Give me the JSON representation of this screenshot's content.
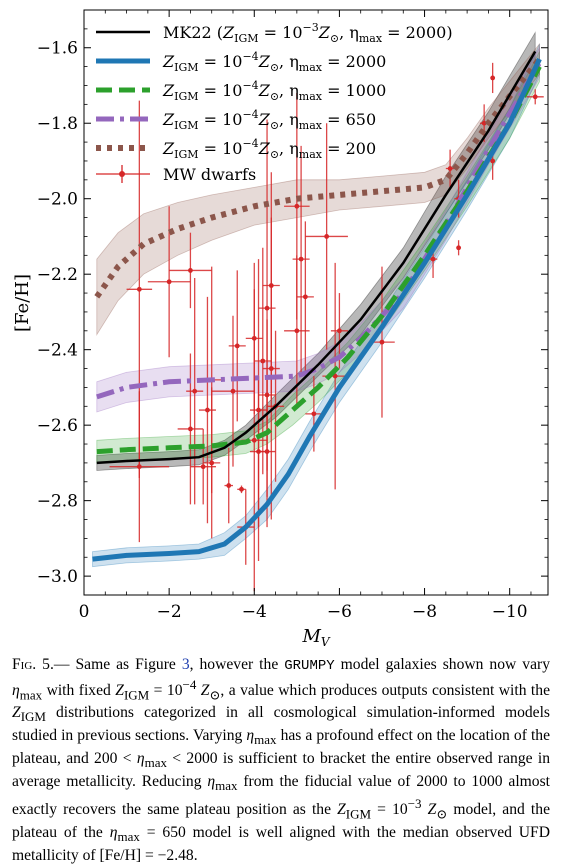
{
  "chart_data": {
    "type": "line",
    "xlabel": "M_V",
    "ylabel": "[Fe/H]",
    "xlim": [
      0,
      -10.9
    ],
    "ylim": [
      -3.05,
      -1.5
    ],
    "x_ticks": [
      0,
      -2,
      -4,
      -6,
      -8,
      -10
    ],
    "x_tick_labels": [
      "0",
      "−2",
      "−4",
      "−6",
      "−8",
      "−10"
    ],
    "y_ticks": [
      -3.0,
      -2.8,
      -2.6,
      -2.4,
      -2.2,
      -2.0,
      -1.8,
      -1.6
    ],
    "y_tick_labels": [
      "−3.0",
      "−2.8",
      "−2.6",
      "−2.4",
      "−2.2",
      "−2.0",
      "−1.8",
      "−1.6"
    ],
    "legend_position": "top-left",
    "series": [
      {
        "name": "MK22 (Z_IGM = 10^−3 Z_⊙, η_max = 2000)",
        "legend_prefix": "MK22 (",
        "legend_z": "Z",
        "legend_sub": "IGM",
        "legend_eq": " = 10",
        "legend_exp": "−3",
        "legend_sun": "Z",
        "legend_sun_sub": "⊙",
        "legend_eta": ", η",
        "legend_eta_sub": "max",
        "legend_value": " = 2000)",
        "color": "#000000",
        "style": "solid",
        "x": [
          -0.3,
          -1,
          -2,
          -2.7,
          -3.3,
          -3.8,
          -4.5,
          -5.5,
          -6.5,
          -7.5,
          -8.5,
          -9.5,
          -10.6
        ],
        "y": [
          -2.7,
          -2.695,
          -2.69,
          -2.685,
          -2.66,
          -2.62,
          -2.55,
          -2.44,
          -2.32,
          -2.17,
          -1.99,
          -1.82,
          -1.61
        ],
        "band": [
          0.02,
          0.02,
          0.02,
          0.02,
          0.02,
          0.02,
          0.03,
          0.03,
          0.04,
          0.04,
          0.05,
          0.05,
          0.05
        ]
      },
      {
        "name": "Z_IGM = 10^−4 Z_⊙, η_max = 2000",
        "legend_z": "Z",
        "legend_sub": "IGM",
        "legend_eq": " = 10",
        "legend_exp": "−4",
        "legend_sun": "Z",
        "legend_sun_sub": "⊙",
        "legend_eta": ", η",
        "legend_eta_sub": "max",
        "legend_value": " = 2000",
        "color": "#1f77b4",
        "style": "solid",
        "x": [
          -0.2,
          -1,
          -2,
          -2.7,
          -3.3,
          -3.8,
          -4.3,
          -4.8,
          -5.3,
          -6,
          -7,
          -8,
          -9,
          -10,
          -10.7
        ],
        "y": [
          -2.955,
          -2.945,
          -2.94,
          -2.935,
          -2.915,
          -2.87,
          -2.81,
          -2.73,
          -2.63,
          -2.5,
          -2.34,
          -2.17,
          -1.99,
          -1.8,
          -1.63
        ],
        "band": [
          0.02,
          0.02,
          0.02,
          0.02,
          0.03,
          0.03,
          0.04,
          0.04,
          0.04,
          0.04,
          0.04,
          0.04,
          0.04,
          0.04,
          0.04
        ]
      },
      {
        "name": "Z_IGM = 10^−4 Z_⊙, η_max = 1000",
        "legend_z": "Z",
        "legend_sub": "IGM",
        "legend_eq": " = 10",
        "legend_exp": "−4",
        "legend_sun": "Z",
        "legend_sun_sub": "⊙",
        "legend_eta": ", η",
        "legend_eta_sub": "max",
        "legend_value": " = 1000",
        "color": "#2ca02c",
        "style": "dashed",
        "x": [
          -0.3,
          -1,
          -2,
          -3,
          -3.8,
          -4.3,
          -4.9,
          -5.5,
          -6.2,
          -7,
          -8,
          -9,
          -10,
          -10.7
        ],
        "y": [
          -2.67,
          -2.665,
          -2.66,
          -2.655,
          -2.645,
          -2.62,
          -2.56,
          -2.5,
          -2.42,
          -2.31,
          -2.15,
          -1.98,
          -1.8,
          -1.65
        ],
        "band": [
          0.03,
          0.03,
          0.03,
          0.03,
          0.03,
          0.03,
          0.04,
          0.04,
          0.04,
          0.04,
          0.04,
          0.04,
          0.04,
          0.04
        ]
      },
      {
        "name": "Z_IGM = 10^−4 Z_⊙, η_max = 650",
        "legend_z": "Z",
        "legend_sub": "IGM",
        "legend_eq": " = 10",
        "legend_exp": "−4",
        "legend_sun": "Z",
        "legend_sun_sub": "⊙",
        "legend_eta": ", η",
        "legend_eta_sub": "max",
        "legend_value": " = 650",
        "color": "#9467bd",
        "style": "dashdot",
        "x": [
          -0.3,
          -1,
          -2,
          -3,
          -4,
          -5,
          -5.5,
          -6,
          -6.5,
          -7.5,
          -8.5,
          -9.5,
          -10.7
        ],
        "y": [
          -2.525,
          -2.5,
          -2.485,
          -2.48,
          -2.475,
          -2.47,
          -2.45,
          -2.42,
          -2.37,
          -2.25,
          -2.07,
          -1.87,
          -1.64
        ],
        "band": [
          0.04,
          0.04,
          0.04,
          0.04,
          0.04,
          0.04,
          0.04,
          0.04,
          0.04,
          0.04,
          0.04,
          0.04,
          0.04
        ]
      },
      {
        "name": "Z_IGM = 10^−4 Z_⊙, η_max = 200",
        "legend_z": "Z",
        "legend_sub": "IGM",
        "legend_eq": " = 10",
        "legend_exp": "−4",
        "legend_sun": "Z",
        "legend_sun_sub": "⊙",
        "legend_eta": ", η",
        "legend_eta_sub": "max",
        "legend_value": " = 200",
        "color": "#8c564b",
        "style": "dotted",
        "x": [
          -0.3,
          -0.8,
          -1.4,
          -2.2,
          -3,
          -4,
          -5,
          -6,
          -7,
          -8,
          -8.5,
          -9,
          -9.5,
          -10.2,
          -10.7
        ],
        "y": [
          -2.26,
          -2.18,
          -2.12,
          -2.08,
          -2.05,
          -2.02,
          -2.0,
          -1.99,
          -1.98,
          -1.97,
          -1.95,
          -1.88,
          -1.8,
          -1.7,
          -1.63
        ],
        "band": [
          0.1,
          0.09,
          0.08,
          0.07,
          0.06,
          0.05,
          0.05,
          0.04,
          0.04,
          0.04,
          0.04,
          0.04,
          0.04,
          0.04,
          0.04
        ]
      }
    ],
    "observations": {
      "name": "MW dwarfs",
      "color": "#d62728",
      "points": [
        {
          "x": -1.3,
          "y": -2.24,
          "xerr": 0.3,
          "yerr": 0.5
        },
        {
          "x": -1.3,
          "y": -2.71,
          "xerr": 0.7,
          "yerr": 0.2
        },
        {
          "x": -2.0,
          "y": -2.22,
          "xerr": 0.5,
          "yerr": 0.2
        },
        {
          "x": -2.5,
          "y": -2.19,
          "xerr": 0.5,
          "yerr": 0.1
        },
        {
          "x": -2.5,
          "y": -2.61,
          "xerr": 0.3,
          "yerr": 0.2
        },
        {
          "x": -2.6,
          "y": -2.51,
          "xerr": 0.2,
          "yerr": 0.3
        },
        {
          "x": -2.8,
          "y": -2.71,
          "xerr": 0.3,
          "yerr": 0.1
        },
        {
          "x": -2.9,
          "y": -2.56,
          "xerr": 0.2,
          "yerr": 0.3
        },
        {
          "x": -3.0,
          "y": -2.48,
          "xerr": 0.3,
          "yerr": 0.3
        },
        {
          "x": -3.0,
          "y": -2.7,
          "xerr": 0.2,
          "yerr": 0.2
        },
        {
          "x": -3.4,
          "y": -2.76,
          "xerr": 0.1,
          "yerr": 0.1
        },
        {
          "x": -3.5,
          "y": -2.51,
          "xerr": 0.5,
          "yerr": 0.2
        },
        {
          "x": -3.6,
          "y": -2.39,
          "xerr": 0.2,
          "yerr": 0.2
        },
        {
          "x": -3.7,
          "y": -2.77,
          "xerr": 0.1,
          "yerr": 0.01
        },
        {
          "x": -3.8,
          "y": -2.87,
          "xerr": 0.2,
          "yerr": 0.1
        },
        {
          "x": -4.0,
          "y": -2.64,
          "xerr": 0.3,
          "yerr": 0.4
        },
        {
          "x": -4.0,
          "y": -2.37,
          "xerr": 0.2,
          "yerr": 0.2
        },
        {
          "x": -4.1,
          "y": -2.67,
          "xerr": 0.2,
          "yerr": 0.2
        },
        {
          "x": -4.1,
          "y": -2.56,
          "xerr": 0.2,
          "yerr": 0.4
        },
        {
          "x": -4.2,
          "y": -2.43,
          "xerr": 0.2,
          "yerr": 0.3
        },
        {
          "x": -4.3,
          "y": -2.67,
          "xerr": 0.2,
          "yerr": 0.2
        },
        {
          "x": -4.3,
          "y": -2.29,
          "xerr": 0.2,
          "yerr": 0.5
        },
        {
          "x": -4.3,
          "y": -2.52,
          "xerr": 0.2,
          "yerr": 0.2
        },
        {
          "x": -4.4,
          "y": -2.45,
          "xerr": 0.2,
          "yerr": 0.4
        },
        {
          "x": -4.4,
          "y": -2.23,
          "xerr": 0.2,
          "yerr": 0.3
        },
        {
          "x": -4.5,
          "y": -2.55,
          "xerr": 0.2,
          "yerr": 0.2
        },
        {
          "x": -5.0,
          "y": -2.35,
          "xerr": 0.3,
          "yerr": 0.2
        },
        {
          "x": -5.0,
          "y": -2.02,
          "xerr": 0.3,
          "yerr": 0.3
        },
        {
          "x": -5.1,
          "y": -2.16,
          "xerr": 0.2,
          "yerr": 0.3
        },
        {
          "x": -5.2,
          "y": -2.26,
          "xerr": 0.2,
          "yerr": 0.2
        },
        {
          "x": -5.4,
          "y": -2.57,
          "xerr": 0.2,
          "yerr": 0.1
        },
        {
          "x": -5.7,
          "y": -2.1,
          "xerr": 0.5,
          "yerr": 0.3
        },
        {
          "x": -5.9,
          "y": -2.47,
          "xerr": 0.3,
          "yerr": 0.3
        },
        {
          "x": -6.0,
          "y": -2.35,
          "xerr": 0.2,
          "yerr": 0.1
        },
        {
          "x": -7.0,
          "y": -2.38,
          "xerr": 0.3,
          "yerr": 0.2
        },
        {
          "x": -8.2,
          "y": -2.16,
          "xerr": 0.1,
          "yerr": 0.05
        },
        {
          "x": -8.6,
          "y": -1.92,
          "xerr": 0.1,
          "yerr": 0.05
        },
        {
          "x": -8.8,
          "y": -2.0,
          "xerr": 0.1,
          "yerr": 0.05
        },
        {
          "x": -8.8,
          "y": -2.13,
          "xerr": 0.05,
          "yerr": 0.02
        },
        {
          "x": -9.4,
          "y": -1.8,
          "xerr": 0.1,
          "yerr": 0.05
        },
        {
          "x": -9.6,
          "y": -1.9,
          "xerr": 0.05,
          "yerr": 0.05
        },
        {
          "x": -9.6,
          "y": -1.68,
          "xerr": 0.05,
          "yerr": 0.04
        },
        {
          "x": -10.6,
          "y": -1.73,
          "xerr": 0.2,
          "yerr": 0.02
        }
      ]
    }
  },
  "caption": {
    "label": "Fig. 5.",
    "dash": "— ",
    "t1": "Same as Figure ",
    "ref": "3",
    "t2": ", however the ",
    "code": "GRUMPY",
    "t3": " model galaxies shown now vary ",
    "eta": "η",
    "max": "max",
    "t4": " with fixed ",
    "z": "Z",
    "igm": "IGM",
    "t5": " = 10",
    "exp": "−4",
    "t6": " Z",
    "sun": "⊙",
    "t7": ", a value which produces outputs consistent with the ",
    "t8": " distributions categorized in all cosmological simulation-informed models studied in previous sections. Varying ",
    "t9": " has a profound effect on the location of the plateau, and 200 < ",
    "t10": " < 2000 is sufficient to bracket the entire observed range in average metallicity. Reducing ",
    "t11": " from the fiducial value of 2000 to 1000 almost exactly recovers the same plateau position as the ",
    "exp3": "−3",
    "t12": " model, and the plateau of the ",
    "t13": " = 650 model is well aligned with the median observed UFD metallicity of [Fe/H] = −2.48."
  }
}
